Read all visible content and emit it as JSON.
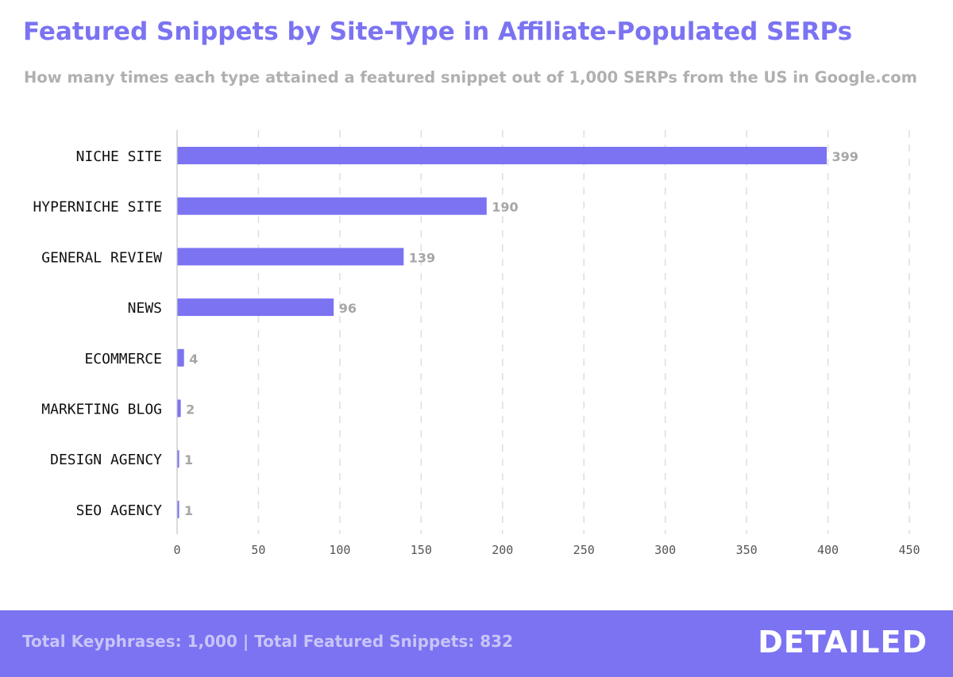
{
  "header": {
    "title": "Featured Snippets by Site-Type in Affiliate-Populated SERPs",
    "subtitle": "How many times each type attained a featured snippet out of 1,000 SERPs from the US in Google.com"
  },
  "footer": {
    "stats": "Total Keyphrases: 1,000 | Total Featured Snippets: 832",
    "brand": "DETAILED"
  },
  "colors": {
    "accent": "#7b73f2",
    "bar": "#7b73f2",
    "footer_bg": "#7b73f2",
    "value_label": "#a6a6a6",
    "axis_text": "#555555",
    "category_text": "#111111",
    "gridline": "#dedede"
  },
  "chart_data": {
    "type": "bar",
    "orientation": "horizontal",
    "title": "Featured Snippets by Site-Type in Affiliate-Populated SERPs",
    "subtitle": "How many times each type attained a featured snippet out of 1,000 SERPs from the US in Google.com",
    "xlabel": "",
    "ylabel": "",
    "categories": [
      "NICHE SITE",
      "HYPERNICHE SITE",
      "GENERAL REVIEW",
      "NEWS",
      "ECOMMERCE",
      "MARKETING BLOG",
      "DESIGN AGENCY",
      "SEO AGENCY"
    ],
    "values": [
      399,
      190,
      139,
      96,
      4,
      2,
      1,
      1
    ],
    "xlim": [
      0,
      450
    ],
    "xticks": [
      0,
      50,
      100,
      150,
      200,
      250,
      300,
      350,
      400,
      450
    ],
    "grid": true,
    "grid_style": "dashed-vertical",
    "legend": "none",
    "data_labels": true
  }
}
